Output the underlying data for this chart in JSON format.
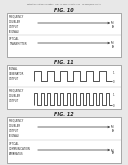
{
  "bg_color": "#e8e8e8",
  "page_bg": "#ffffff",
  "header_text": "Patent Application Publication    Feb. 12, 2009  Sheet 1 of 12    US 2009/0041411 A1",
  "fig10_title": "FIG. 10",
  "fig11_title": "FIG. 11",
  "fig12_title": "FIG. 12",
  "panel_color": "#ffffff",
  "panel_border": "#888888",
  "line_color": "#333333",
  "text_color": "#222222",
  "wave_color": "#333333",
  "fig10_labels_top": [
    "FREQUENCY",
    "DOUBLER",
    "OUTPUT",
    "(SIGNAL)"
  ],
  "fig10_labels_bot": [
    "OPTICAL",
    "TRANSMITTER",
    "",
    ""
  ],
  "fig12_labels_top": [
    "FREQUENCY",
    "DOUBLER",
    "OUTPUT",
    "(SIGNAL)"
  ],
  "fig12_labels_bot": [
    "OPTICAL",
    "COMMUNICATION",
    "APPARATUS",
    ""
  ],
  "fig11_top_label": [
    "SIGNAL",
    "GENERATOR",
    "OUTPUT"
  ],
  "fig11_bot_label": [
    "FREQUENCY",
    "DOUBLER",
    "OUTPUT"
  ]
}
